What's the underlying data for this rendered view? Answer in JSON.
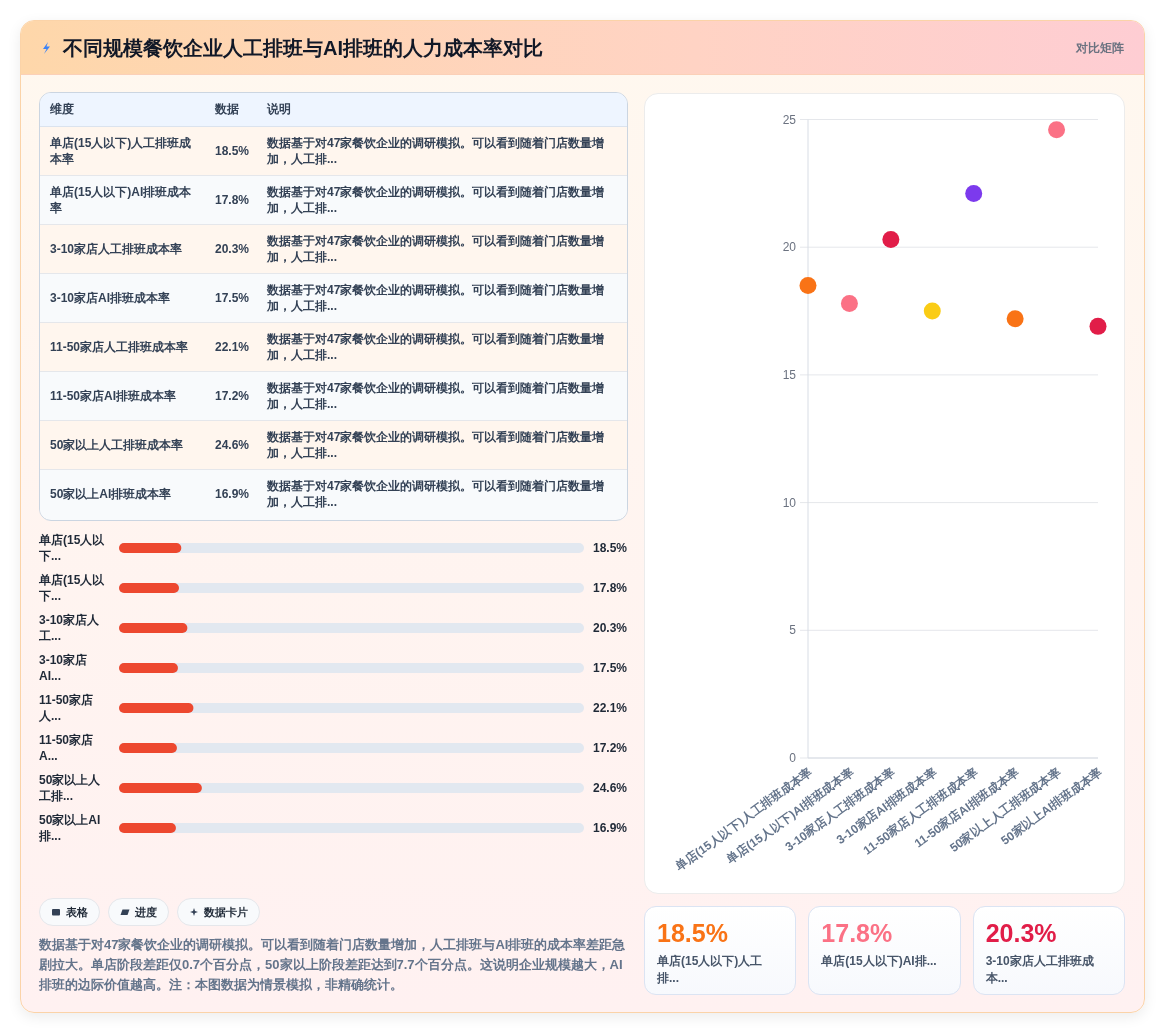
{
  "chart_data": [
    {
      "type": "other",
      "title": "不同规模餐饮企业人工排班与AI排班的人力成本率对比",
      "subtitle": "对比矩阵"
    },
    {
      "type": "other",
      "categories": [
        "单店(15人以下)人工排班成本率",
        "单店(15人以下)AI排班成本率",
        "3-10家店人工排班成本率",
        "3-10家店AI排班成本率",
        "11-50家店人工排班成本率",
        "11-50家店AI排班成本率",
        "50家以上人工排班成本率",
        "50家以上AI排班成本率"
      ],
      "values": [
        18.5,
        17.8,
        20.3,
        17.5,
        22.1,
        17.2,
        24.6,
        16.9
      ],
      "value_labels": [
        "18.5%",
        "17.8%",
        "20.3%",
        "17.5%",
        "22.1%",
        "17.2%",
        "24.6%",
        "16.9%"
      ],
      "annotations": [
        "维度",
        "数据",
        "说明",
        "数据基于对47家餐饮企业的调研模拟。可以看到随着门店数量增加，人工排...",
        "数据基于对47家餐饮企业的调研模拟。可以看到随着门店数量增加，人工排...",
        "数据基于对47家餐饮企业的调研模拟。可以看到随着门店数量增加，人工排...",
        "数据基于对47家餐饮企业的调研模拟。可以看到随着门店数量增加，人工排...",
        "数据基于对47家餐饮企业的调研模拟。可以看到随着门店数量增加，人工排...",
        "数据基于对47家餐饮企业的调研模拟。可以看到随着门店数量增加，人工排...",
        "数据基于对47家餐饮企业的调研模拟。可以看到随着门店数量增加，人工排...",
        "数据基于对47家餐饮企业的调研模拟。可以看到随着门店数量增加，人工排..."
      ]
    },
    {
      "type": "bar",
      "orientation": "horizontal",
      "categories": [
        "单店(15人以下...",
        "单店(15人以下...",
        "3-10家店人工...",
        "3-10家店AI...",
        "11-50家店人...",
        "11-50家店A...",
        "50家以上人工排...",
        "50家以上AI排..."
      ],
      "values": [
        18.5,
        17.8,
        20.3,
        17.5,
        22.1,
        17.2,
        24.6,
        16.9
      ],
      "value_labels": [
        "18.5%",
        "17.8%",
        "20.3%",
        "17.5%",
        "22.1%",
        "17.2%",
        "24.6%",
        "16.9%"
      ],
      "color": "#ed482f",
      "xlim": [
        0,
        138
      ],
      "tick_labels": "y"
    },
    {
      "type": "other",
      "categories": [
        "表格",
        "进度",
        "数据卡片"
      ],
      "annotations": [
        "数据基于对47家餐饮企业的调研模拟。可以看到随着门店数量增加，人工排班与AI排班的成本率差距急剧拉大。单店阶段差距仅0.7个百分点，50家以上阶段差距达到7.7个百分点。这说明企业规模越大，AI排班的边际价值越高。注：本图数据为情景模拟，非精确统计。"
      ]
    },
    {
      "type": "scatter",
      "categories": [
        "单店(15人以下)人工排班成本率",
        "单店(15人以下)AI排班成本率",
        "3-10家店人工排班成本率",
        "3-10家店AI排班成本率",
        "11-50家店人工排班成本率",
        "11-50家店AI排班成本率",
        "50家以上人工排班成本率",
        "50家以上AI排班成本率"
      ],
      "values": [
        18.5,
        17.8,
        20.3,
        17.5,
        22.1,
        17.2,
        24.6,
        16.9
      ],
      "colors": [
        "#f97316",
        "#fb7185",
        "#e11d48",
        "#facc15",
        "#7c3aed",
        "#f97316",
        "#fb7185",
        "#e11d48"
      ],
      "ylim": [
        0,
        25
      ],
      "yticks": [
        0,
        5,
        10,
        15,
        20,
        25
      ],
      "grid": "y",
      "marker": "circle"
    },
    {
      "type": "other",
      "categories": [
        "单店(15人以下)人工排...",
        "单店(15人以下)AI排...",
        "3-10家店人工排班成本..."
      ],
      "values": [
        18.5,
        17.8,
        20.3
      ],
      "value_labels": [
        "18.5%",
        "17.8%",
        "20.3%"
      ],
      "colors": [
        "#f97316",
        "#fb7185",
        "#e11d48"
      ]
    }
  ]
}
